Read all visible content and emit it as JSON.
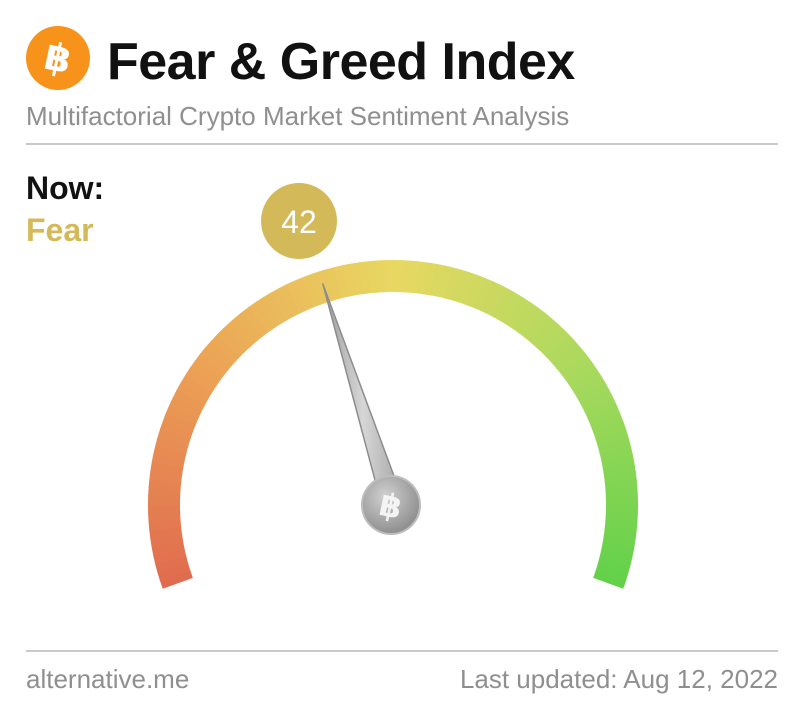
{
  "header": {
    "logo_icon": "bitcoin-icon",
    "title": "Fear & Greed Index",
    "subtitle": "Multifactorial Crypto Market Sentiment Analysis"
  },
  "status": {
    "now_label": "Now:",
    "classification": "Fear",
    "value": 42
  },
  "gauge": {
    "min": 0,
    "max": 100,
    "value": 42,
    "value_label": "42",
    "hub_icon": "bitcoin-icon",
    "colors": {
      "fear_extreme": "#e06b4f",
      "fear": "#eca155",
      "neutral": "#e8d862",
      "greed": "#a8d95d",
      "greed_extreme": "#62d14a",
      "value_bubble": "#d4b959",
      "classification_text": "#d4b959",
      "brand": "#f7931a"
    }
  },
  "footer": {
    "source": "alternative.me",
    "last_updated": "Last updated: Aug 12, 2022"
  }
}
